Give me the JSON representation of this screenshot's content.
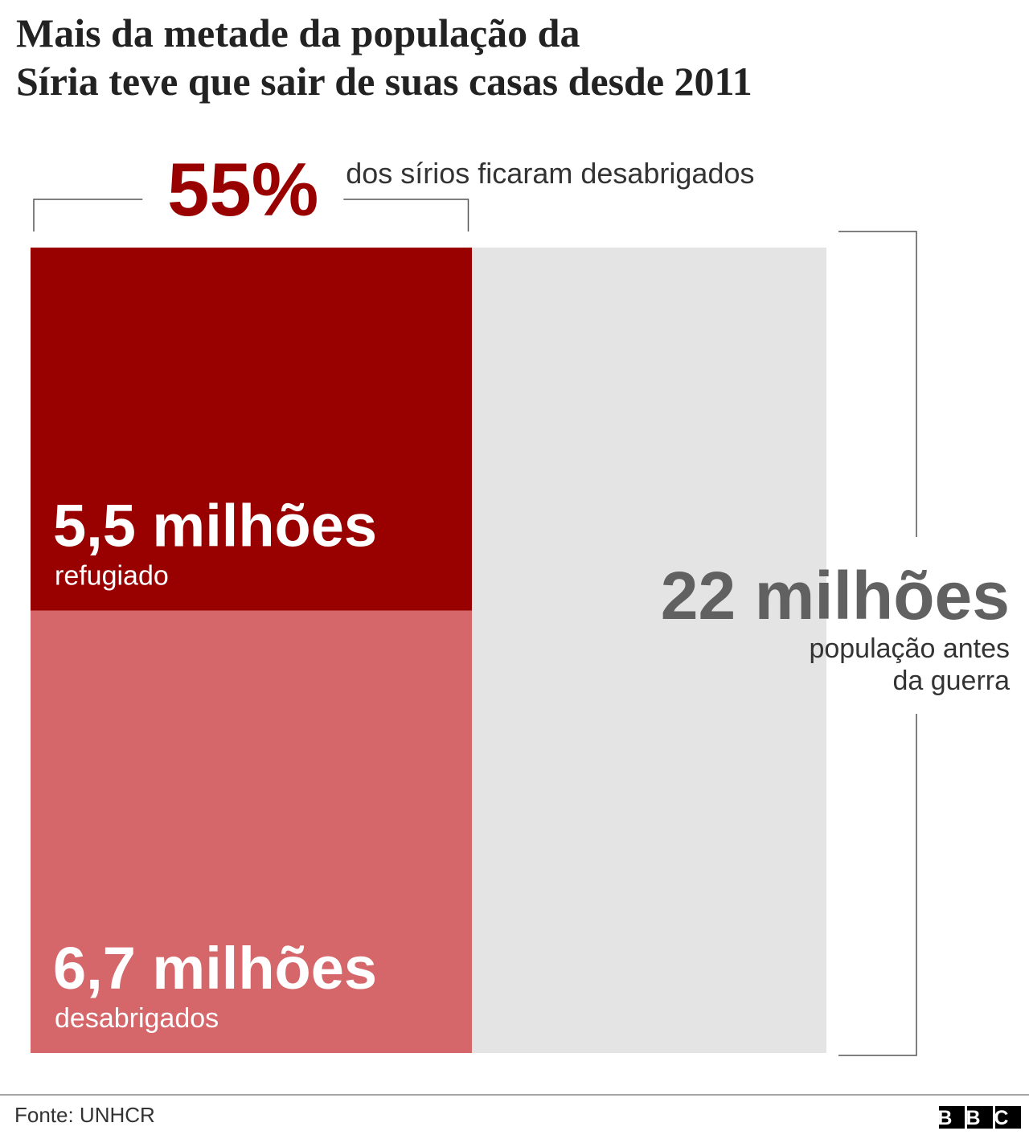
{
  "chart_data": {
    "type": "proportional-area",
    "title": [
      "Mais da metade da população da",
      "Síria teve que sair de suas casas desde 2011"
    ],
    "share": {
      "value": 55,
      "label": "55%",
      "caption": "dos sírios ficaram desabrigados"
    },
    "categories": [
      "refugiado",
      "desabrigados"
    ],
    "values": [
      5.5,
      6.7
    ],
    "value_labels": [
      "5,5 milhões",
      "6,7 milhões"
    ],
    "colors": [
      "#990000",
      "#d5676a"
    ],
    "total": {
      "value": 22,
      "label": "22 milhões",
      "caption": [
        "população antes",
        "da guerra"
      ],
      "color": "#e4e4e4"
    },
    "source": "Fonte: UNHCR",
    "logo": "BBC"
  }
}
